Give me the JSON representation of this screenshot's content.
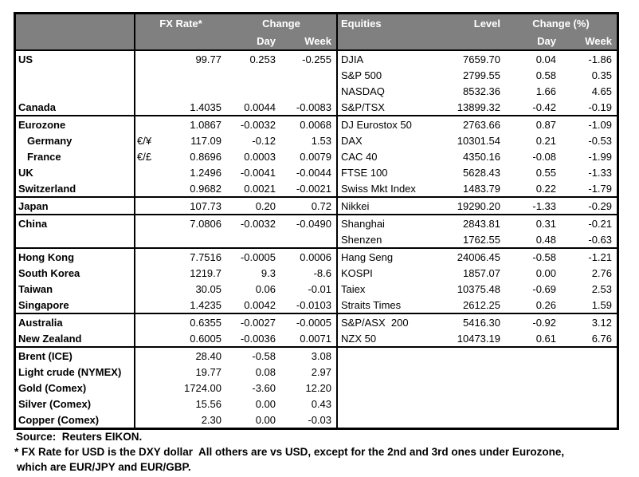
{
  "colors": {
    "header_bg": "#808080",
    "header_text": "#ffffff",
    "border": "#000000"
  },
  "header": {
    "fx_rate": "FX Rate*",
    "change": "Change",
    "day": "Day",
    "week": "Week",
    "equities": "Equities",
    "level": "Level",
    "change_pct": "Change (%)"
  },
  "rows": [
    {
      "label": "US",
      "indent": false,
      "pair": "",
      "fx": "99.77",
      "fx_day": "0.253",
      "fx_week": "-0.255",
      "eq": "DJIA",
      "level": "7659.70",
      "eq_day": "0.04",
      "eq_week": "-1.86",
      "sect": false
    },
    {
      "label": "",
      "indent": false,
      "pair": "",
      "fx": "",
      "fx_day": "",
      "fx_week": "",
      "eq": "S&P 500",
      "level": "2799.55",
      "eq_day": "0.58",
      "eq_week": "0.35",
      "sect": false
    },
    {
      "label": "",
      "indent": false,
      "pair": "",
      "fx": "",
      "fx_day": "",
      "fx_week": "",
      "eq": "NASDAQ",
      "level": "8532.36",
      "eq_day": "1.66",
      "eq_week": "4.65",
      "sect": false
    },
    {
      "label": "Canada",
      "indent": false,
      "pair": "",
      "fx": "1.4035",
      "fx_day": "0.0044",
      "fx_week": "-0.0083",
      "eq": "S&P/TSX",
      "level": "13899.32",
      "eq_day": "-0.42",
      "eq_week": "-0.19",
      "sect": false
    },
    {
      "label": "Eurozone",
      "indent": false,
      "pair": "",
      "fx": "1.0867",
      "fx_day": "-0.0032",
      "fx_week": "0.0068",
      "eq": "DJ Eurostox 50",
      "level": "2763.66",
      "eq_day": "0.87",
      "eq_week": "-1.09",
      "sect": true
    },
    {
      "label": "Germany",
      "indent": true,
      "pair": "€/¥",
      "fx": "117.09",
      "fx_day": "-0.12",
      "fx_week": "1.53",
      "eq": "DAX",
      "level": "10301.54",
      "eq_day": "0.21",
      "eq_week": "-0.53",
      "sect": false
    },
    {
      "label": "France",
      "indent": true,
      "pair": "€/£",
      "fx": "0.8696",
      "fx_day": "0.0003",
      "fx_week": "0.0079",
      "eq": "CAC 40",
      "level": "4350.16",
      "eq_day": "-0.08",
      "eq_week": "-1.99",
      "sect": false
    },
    {
      "label": "UK",
      "indent": false,
      "pair": "",
      "fx": "1.2496",
      "fx_day": "-0.0041",
      "fx_week": "-0.0044",
      "eq": "FTSE 100",
      "level": "5628.43",
      "eq_day": "0.55",
      "eq_week": "-1.33",
      "sect": false
    },
    {
      "label": "Switzerland",
      "indent": false,
      "pair": "",
      "fx": "0.9682",
      "fx_day": "0.0021",
      "fx_week": "-0.0021",
      "eq": "Swiss Mkt Index",
      "level": "1483.79",
      "eq_day": "0.22",
      "eq_week": "-1.79",
      "sect": false
    },
    {
      "label": "Japan",
      "indent": false,
      "pair": "",
      "fx": "107.73",
      "fx_day": "0.20",
      "fx_week": "0.72",
      "eq": "Nikkei",
      "level": "19290.20",
      "eq_day": "-1.33",
      "eq_week": "-0.29",
      "sect": true
    },
    {
      "label": "China",
      "indent": false,
      "pair": "",
      "fx": "7.0806",
      "fx_day": "-0.0032",
      "fx_week": "-0.0490",
      "eq": "Shanghai",
      "level": "2843.81",
      "eq_day": "0.31",
      "eq_week": "-0.21",
      "sect": true
    },
    {
      "label": "",
      "indent": false,
      "pair": "",
      "fx": "",
      "fx_day": "",
      "fx_week": "",
      "eq": "Shenzen",
      "level": "1762.55",
      "eq_day": "0.48",
      "eq_week": "-0.63",
      "sect": false
    },
    {
      "label": "Hong Kong",
      "indent": false,
      "pair": "",
      "fx": "7.7516",
      "fx_day": "-0.0005",
      "fx_week": "0.0006",
      "eq": "Hang Seng",
      "level": "24006.45",
      "eq_day": "-0.58",
      "eq_week": "-1.21",
      "sect": true
    },
    {
      "label": "South Korea",
      "indent": false,
      "pair": "",
      "fx": "1219.7",
      "fx_day": "9.3",
      "fx_week": "-8.6",
      "eq": "KOSPI",
      "level": "1857.07",
      "eq_day": "0.00",
      "eq_week": "2.76",
      "sect": false
    },
    {
      "label": "Taiwan",
      "indent": false,
      "pair": "",
      "fx": "30.05",
      "fx_day": "0.06",
      "fx_week": "-0.01",
      "eq": "Taiex",
      "level": "10375.48",
      "eq_day": "-0.69",
      "eq_week": "2.53",
      "sect": false
    },
    {
      "label": "Singapore",
      "indent": false,
      "pair": "",
      "fx": "1.4235",
      "fx_day": "0.0042",
      "fx_week": "-0.0103",
      "eq": "Straits Times",
      "level": "2612.25",
      "eq_day": "0.26",
      "eq_week": "1.59",
      "sect": false
    },
    {
      "label": "Australia",
      "indent": false,
      "pair": "",
      "fx": "0.6355",
      "fx_day": "-0.0027",
      "fx_week": "-0.0005",
      "eq": "S&P/ASX  200",
      "level": "5416.30",
      "eq_day": "-0.92",
      "eq_week": "3.12",
      "sect": true
    },
    {
      "label": "New Zealand",
      "indent": false,
      "pair": "",
      "fx": "0.6005",
      "fx_day": "-0.0036",
      "fx_week": "0.0071",
      "eq": "NZX 50",
      "level": "10473.19",
      "eq_day": "0.61",
      "eq_week": "6.76",
      "sect": false
    },
    {
      "label": "Brent (ICE)",
      "indent": false,
      "pair": "",
      "fx": "28.40",
      "fx_day": "-0.58",
      "fx_week": "3.08",
      "eq": "",
      "level": "",
      "eq_day": "",
      "eq_week": "",
      "sect": true
    },
    {
      "label": "Light crude (NYMEX)",
      "indent": false,
      "pair": "",
      "fx": "19.77",
      "fx_day": "0.08",
      "fx_week": "2.97",
      "eq": "",
      "level": "",
      "eq_day": "",
      "eq_week": "",
      "sect": false
    },
    {
      "label": "Gold (Comex)",
      "indent": false,
      "pair": "",
      "fx": "1724.00",
      "fx_day": "-3.60",
      "fx_week": "12.20",
      "eq": "",
      "level": "",
      "eq_day": "",
      "eq_week": "",
      "sect": false
    },
    {
      "label": "Silver (Comex)",
      "indent": false,
      "pair": "",
      "fx": "15.56",
      "fx_day": "0.00",
      "fx_week": "0.43",
      "eq": "",
      "level": "",
      "eq_day": "",
      "eq_week": "",
      "sect": false
    },
    {
      "label": "Copper (Comex)",
      "indent": false,
      "pair": "",
      "fx": "2.30",
      "fx_day": "0.00",
      "fx_week": "-0.03",
      "eq": "",
      "level": "",
      "eq_day": "",
      "eq_week": "",
      "sect": false
    }
  ],
  "footer": {
    "source": "Source:  Reuters EIKON.",
    "note1": "* FX Rate for USD is the DXY dollar  All others are vs USD, except for the 2nd and 3rd ones under Eurozone,",
    "note2": "which are EUR/JPY and EUR/GBP."
  }
}
